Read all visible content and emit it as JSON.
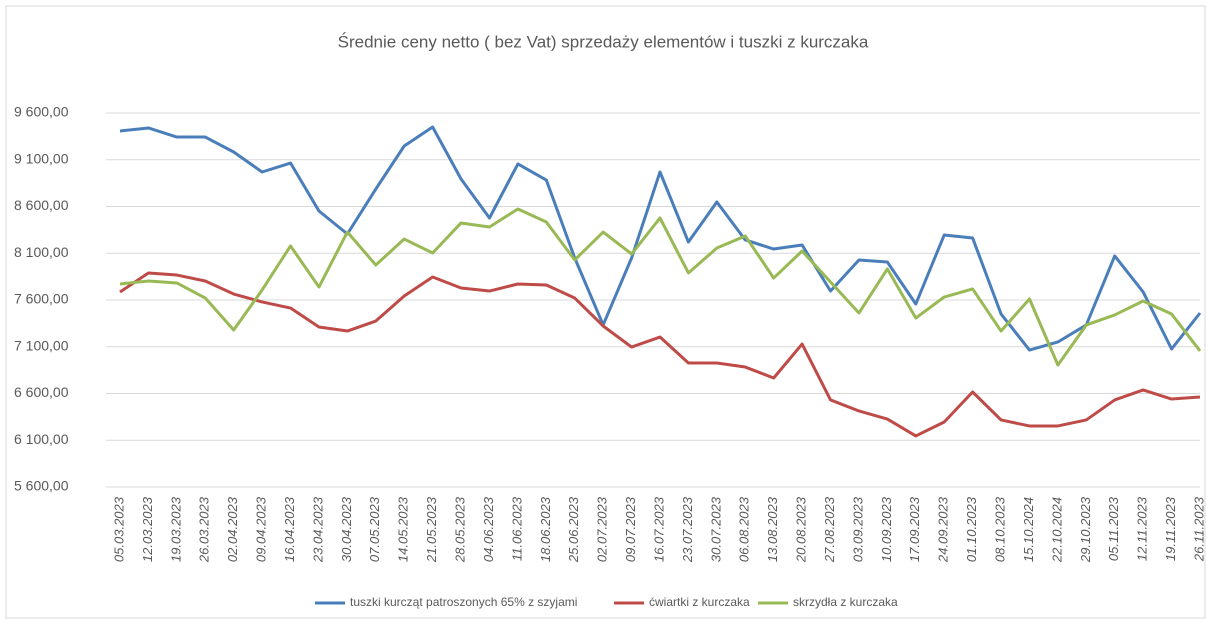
{
  "chart_data": {
    "type": "line",
    "title": "Średnie ceny netto ( bez Vat) sprzedaży elementów i tuszki z kurczaka",
    "categories": [
      "05.03.2023",
      "12.03.2023",
      "19.03.2023",
      "26.03.2023",
      "02.04.2023",
      "09.04.2023",
      "16.04.2023",
      "23.04.2023",
      "30.04.2023",
      "07.05.2023",
      "14.05.2023",
      "21.05.2023",
      "28.05.2023",
      "04.06.2023",
      "11.06.2023",
      "18.06.2023",
      "25.06.2023",
      "02.07.2023",
      "09.07.2023",
      "16.07.2023",
      "23.07.2023",
      "30.07.2023",
      "06.08.2023",
      "13.08.2023",
      "20.08.2023",
      "27.08.2023",
      "03.09.2023",
      "10.09.2023",
      "17.09.2023",
      "24.09.2023",
      "01.10.2023",
      "08.10.2023",
      "15.10.2024",
      "22.10.2024",
      "29.10.2023",
      "05.11.2023",
      "12.11.2023",
      "19.11.2023",
      "26.11.2023"
    ],
    "series": [
      {
        "name": "tuszki kurcząt patroszonych 65% z szyjami",
        "color": "#4a7ebb",
        "values": [
          9407,
          9440,
          9343,
          9343,
          9183,
          8969,
          9065,
          8552,
          8306,
          8787,
          9247,
          9450,
          8894,
          8477,
          9055,
          8883,
          8049,
          7333,
          8049,
          8969,
          8220,
          8648,
          8242,
          8145,
          8188,
          7696,
          8028,
          8006,
          7557,
          8295,
          8263,
          7450,
          7065,
          7151,
          7333,
          8071,
          7686,
          7076,
          7461
        ]
      },
      {
        "name": "ćwiartki z kurczaka",
        "color": "#be4b48",
        "values": [
          7686,
          7889,
          7867,
          7803,
          7664,
          7579,
          7514,
          7311,
          7268,
          7375,
          7643,
          7846,
          7728,
          7696,
          7771,
          7760,
          7621,
          7322,
          7097,
          7204,
          6926,
          6926,
          6883,
          6766,
          7129,
          6531,
          6413,
          6327,
          6146,
          6295,
          6616,
          6317,
          6253,
          6253,
          6317,
          6531,
          6638,
          6541,
          6563
        ]
      },
      {
        "name": "skrzydła z kurczaka",
        "color": "#98b954",
        "values": [
          7771,
          7803,
          7782,
          7621,
          7279,
          7707,
          8178,
          7739,
          8327,
          7974,
          8252,
          8103,
          8424,
          8381,
          8573,
          8434,
          8028,
          8327,
          8092,
          8477,
          7889,
          8156,
          8285,
          7835,
          8124,
          7793,
          7461,
          7932,
          7407,
          7632,
          7718,
          7268,
          7611,
          6905,
          7333,
          7440,
          7589,
          7450,
          7055
        ]
      }
    ],
    "ylim": [
      5600,
      9600
    ],
    "yticks": [
      {
        "value": 5600,
        "label": "5 600,00"
      },
      {
        "value": 6100,
        "label": "6 100,00"
      },
      {
        "value": 6600,
        "label": "6 600,00"
      },
      {
        "value": 7100,
        "label": "7 100,00"
      },
      {
        "value": 7600,
        "label": "7 600,00"
      },
      {
        "value": 8100,
        "label": "8 100,00"
      },
      {
        "value": 8600,
        "label": "8 600,00"
      },
      {
        "value": 9100,
        "label": "9 100,00"
      },
      {
        "value": 9600,
        "label": "9 600,00"
      }
    ],
    "grid": true,
    "legend": "bottom"
  }
}
